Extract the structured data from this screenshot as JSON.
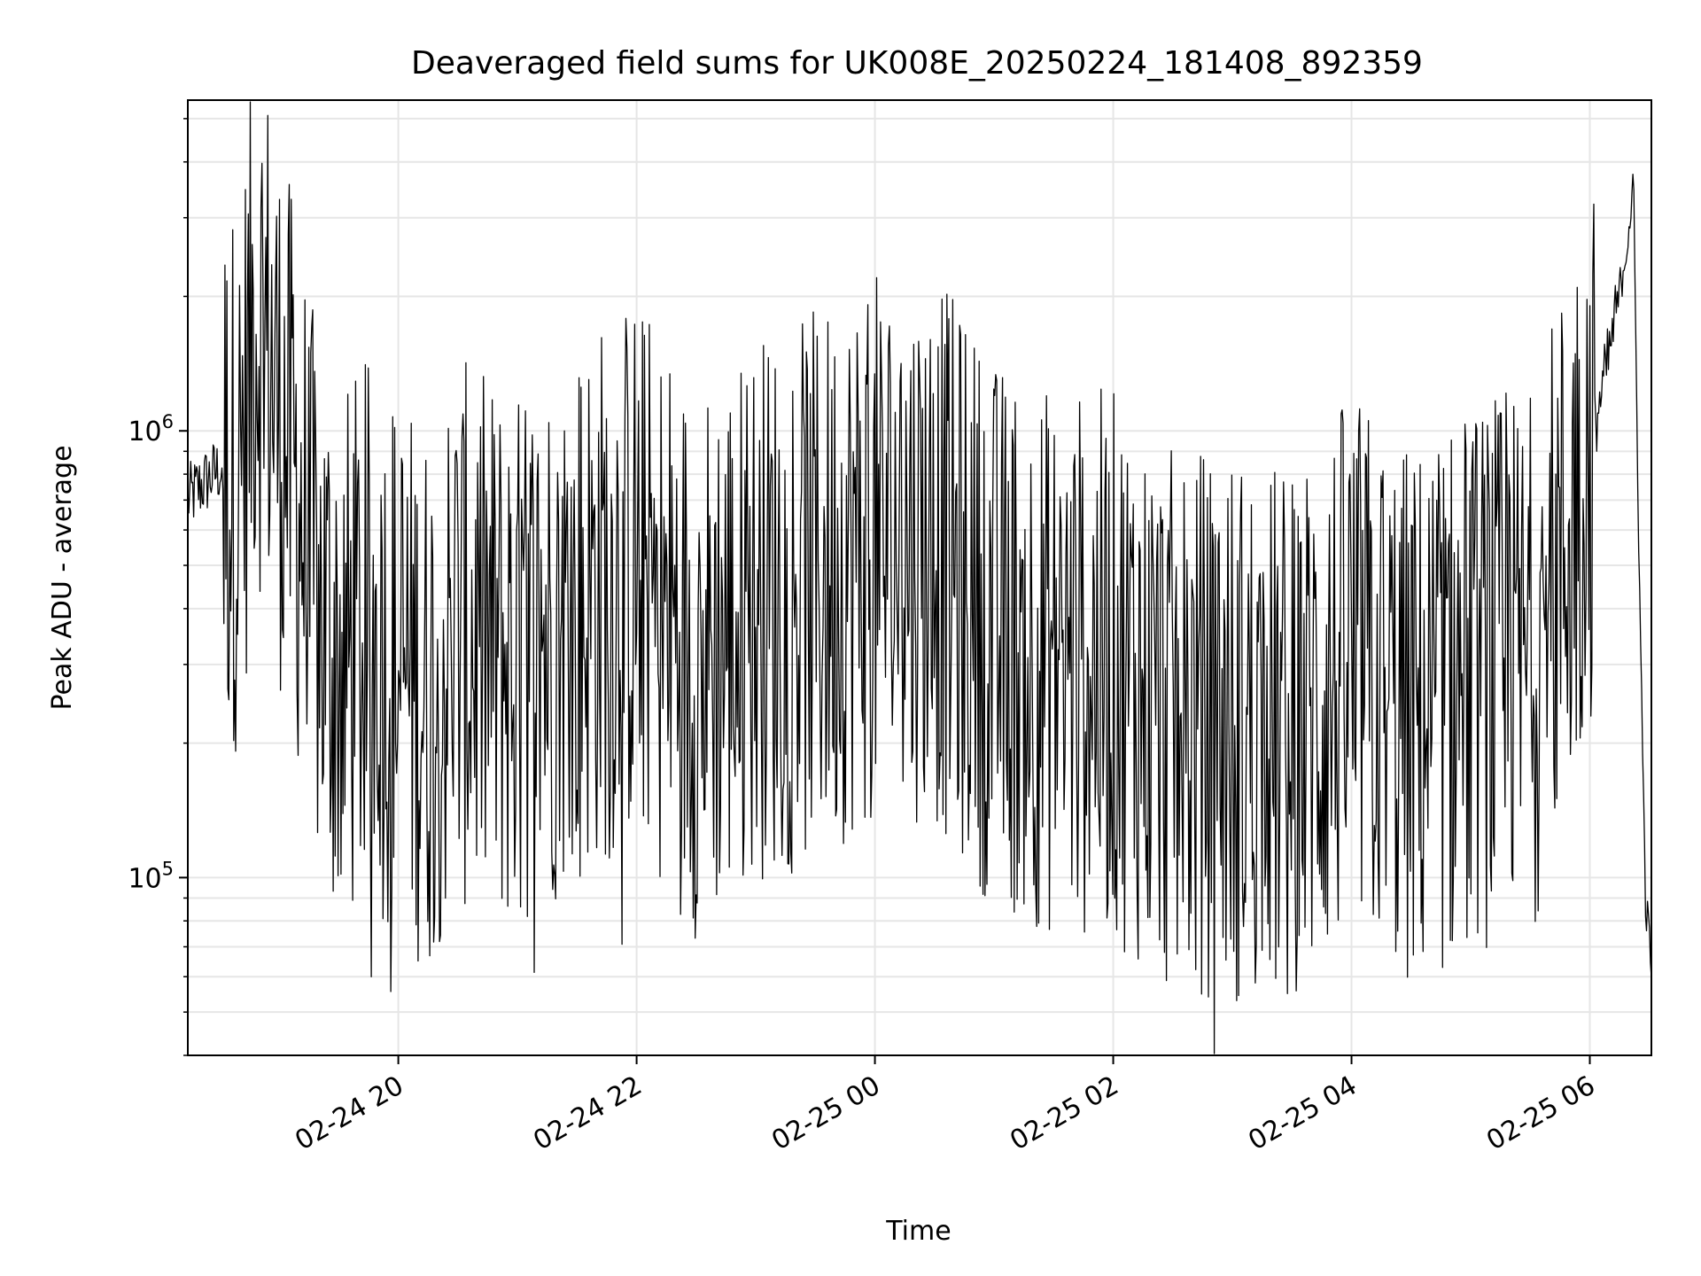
{
  "chart_data": {
    "type": "line",
    "title": "Deaveraged field sums for UK008E_20250224_181408_892359",
    "xlabel": "Time",
    "ylabel": "Peak ADU - average",
    "yscale": "log",
    "ylim": [
      40000,
      5500000
    ],
    "xlim": [
      "2025-02-24 18:14",
      "2025-02-25 06:31"
    ],
    "grid": true,
    "line_color": "#000000",
    "x_ticks": [
      {
        "t": "2025-02-24 20:00",
        "label": "02-24 20"
      },
      {
        "t": "2025-02-24 22:00",
        "label": "02-24 22"
      },
      {
        "t": "2025-02-25 00:00",
        "label": "02-25 00"
      },
      {
        "t": "2025-02-25 02:00",
        "label": "02-25 02"
      },
      {
        "t": "2025-02-25 04:00",
        "label": "02-25 04"
      },
      {
        "t": "2025-02-25 06:00",
        "label": "02-25 06"
      }
    ],
    "y_ticks": [
      {
        "value": 100000,
        "base": "10",
        "exp": "5"
      },
      {
        "value": 1000000,
        "base": "10",
        "exp": "6"
      }
    ],
    "series": [
      {
        "x": [
          "2025-02-24 18:14",
          "2025-02-24 18:20",
          "2025-02-24 18:30",
          "2025-02-24 18:40",
          "2025-02-24 18:48",
          "2025-02-24 18:50",
          "2025-02-24 18:55",
          "2025-02-24 19:00",
          "2025-02-24 19:05",
          "2025-02-24 19:10",
          "2025-02-24 19:15",
          "2025-02-24 19:20",
          "2025-02-24 19:30",
          "2025-02-24 19:45",
          "2025-02-24 20:00",
          "2025-02-24 20:15",
          "2025-02-24 20:30",
          "2025-02-24 21:00",
          "2025-02-24 21:30",
          "2025-02-24 22:00",
          "2025-02-24 22:30",
          "2025-02-24 23:00",
          "2025-02-24 23:30",
          "2025-02-25 00:00",
          "2025-02-25 00:30",
          "2025-02-25 01:00",
          "2025-02-25 01:30",
          "2025-02-25 02:00",
          "2025-02-25 02:30",
          "2025-02-25 03:00",
          "2025-02-25 03:30",
          "2025-02-25 04:00",
          "2025-02-25 04:30",
          "2025-02-25 05:00",
          "2025-02-25 05:30",
          "2025-02-25 05:50",
          "2025-02-25 06:00",
          "2025-02-25 06:10",
          "2025-02-25 06:18",
          "2025-02-25 06:22",
          "2025-02-25 06:25",
          "2025-02-25 06:28",
          "2025-02-25 06:31"
        ],
        "y": [
          700000,
          750000,
          820000,
          780000,
          1900000,
          1800000,
          1500000,
          1100000,
          900000,
          700000,
          500000,
          400000,
          300000,
          350000,
          300000,
          250000,
          350000,
          300000,
          400000,
          500000,
          300000,
          400000,
          450000,
          550000,
          550000,
          350000,
          300000,
          300000,
          220000,
          220000,
          200000,
          300000,
          220000,
          280000,
          300000,
          600000,
          900000,
          1500000,
          2500000,
          3500000,
          450000,
          90000,
          65000
        ]
      }
    ]
  }
}
